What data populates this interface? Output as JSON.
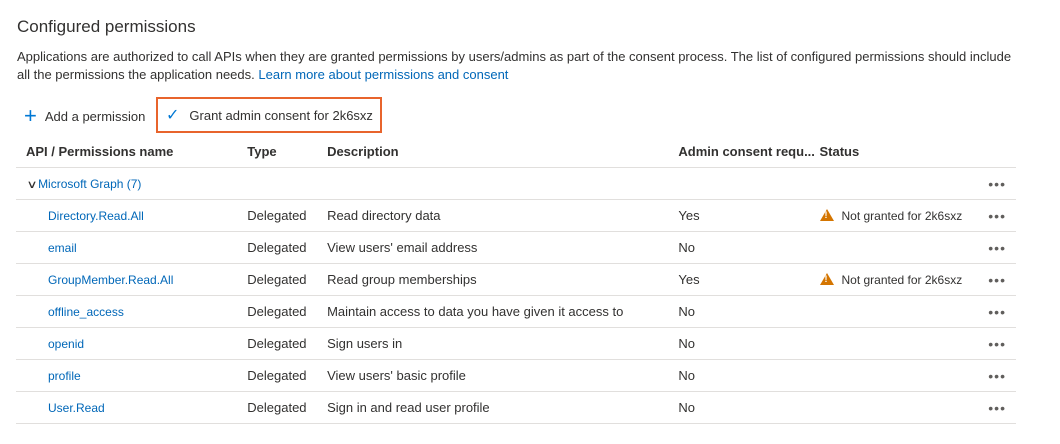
{
  "title": "Configured permissions",
  "intro": "Applications are authorized to call APIs when they are granted permissions by users/admins as part of the consent process. The list of configured permissions should include all the permissions the application needs. ",
  "learn_more": "Learn more about permissions and consent",
  "toolbar": {
    "add_label": "Add a permission",
    "grant_label": "Grant admin consent for 2k6sxz"
  },
  "columns": [
    "API / Permissions name",
    "Type",
    "Description",
    "Admin consent requ...",
    "Status"
  ],
  "group": {
    "label": "Microsoft Graph (7)",
    "expanded": true
  },
  "rows": [
    {
      "name": "Directory.Read.All",
      "type": "Delegated",
      "description": "Read directory data",
      "admin": "Yes",
      "status": "Not granted for 2k6sxz"
    },
    {
      "name": "email",
      "type": "Delegated",
      "description": "View users' email address",
      "admin": "No",
      "status": ""
    },
    {
      "name": "GroupMember.Read.All",
      "type": "Delegated",
      "description": "Read group memberships",
      "admin": "Yes",
      "status": "Not granted for 2k6sxz"
    },
    {
      "name": "offline_access",
      "type": "Delegated",
      "description": "Maintain access to data you have given it access to",
      "admin": "No",
      "status": ""
    },
    {
      "name": "openid",
      "type": "Delegated",
      "description": "Sign users in",
      "admin": "No",
      "status": ""
    },
    {
      "name": "profile",
      "type": "Delegated",
      "description": "View users' basic profile",
      "admin": "No",
      "status": ""
    },
    {
      "name": "User.Read",
      "type": "Delegated",
      "description": "Sign in and read user profile",
      "admin": "No",
      "status": ""
    }
  ],
  "more_label": "•••",
  "colors": {
    "link": "#0067b8",
    "highlight": "#e8642c",
    "warning": "#d47500"
  }
}
